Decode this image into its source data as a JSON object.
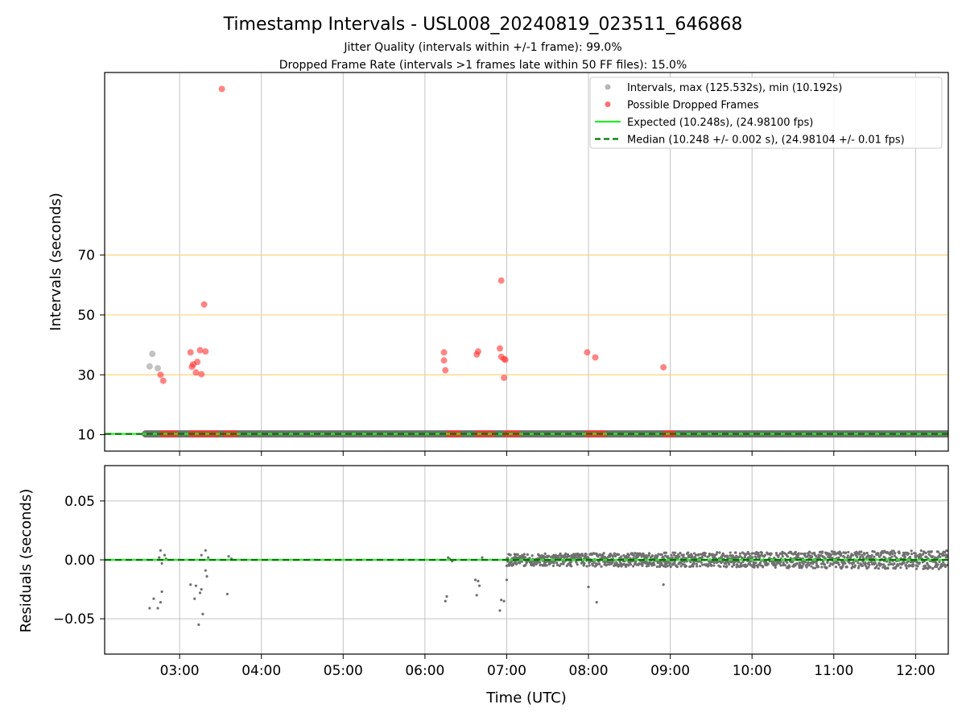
{
  "title": "Timestamp Intervals - USL008_20240819_023511_646868",
  "subtitle_line1": "Jitter Quality (intervals within +/-1 frame): 99.0%",
  "subtitle_line2": "Dropped Frame Rate (intervals >1 frames late within 50 FF files): 15.0%",
  "chart_data": [
    {
      "type": "scatter",
      "ylabel": "Intervals (seconds)",
      "xlabel": "",
      "xlim": [
        "02:05",
        "12:24"
      ],
      "ylim": [
        4.5,
        131.0
      ],
      "y_ticks": [
        10,
        30,
        50,
        70
      ],
      "y_tick_labels": [
        "10",
        "30",
        "50",
        "70"
      ],
      "x_ticks": [
        "03:00",
        "04:00",
        "05:00",
        "06:00",
        "07:00",
        "08:00",
        "09:00",
        "10:00",
        "11:00",
        "12:00"
      ],
      "reference_lines": [
        30,
        50,
        70
      ],
      "reference_line_color": "#ffd27a",
      "grid": "vertical",
      "legend_position": "top-right",
      "legend": [
        {
          "label": "Intervals, max (125.532s), min (10.192s)",
          "marker": "circle",
          "color": "#999999"
        },
        {
          "label": "Possible Dropped Frames",
          "marker": "circle",
          "color": "#ff3333"
        },
        {
          "label": "Expected (10.248s), (24.98100 fps)",
          "marker": "line",
          "color": "#22ee22"
        },
        {
          "label": "Median (10.248 +/- 0.002 s), (24.98104 +/- 0.01 fps)",
          "marker": "dashed",
          "color": "#007700"
        }
      ],
      "series": [
        {
          "name": "Intervals, max (125.532s), min (10.192s)",
          "color": "#999999",
          "points": [
            [
              "02:38",
              32.8
            ],
            [
              "02:40",
              37.0
            ],
            [
              "02:44",
              32.2
            ]
          ],
          "baseline": {
            "value": 10.248,
            "x_start": "02:35",
            "x_end": "12:24"
          }
        },
        {
          "name": "Possible Dropped Frames",
          "color": "#ff3333",
          "points": [
            [
              "03:31",
              125.5
            ],
            [
              "03:18",
              53.5
            ],
            [
              "06:56",
              61.5
            ],
            [
              "03:08",
              37.5
            ],
            [
              "03:15",
              38.2
            ],
            [
              "03:19",
              37.8
            ],
            [
              "03:13",
              34.3
            ],
            [
              "03:10",
              33.5
            ],
            [
              "03:09",
              32.7
            ],
            [
              "03:12",
              30.8
            ],
            [
              "03:16",
              30.2
            ],
            [
              "02:46",
              30.0
            ],
            [
              "02:48",
              28.0
            ],
            [
              "06:14",
              37.5
            ],
            [
              "06:14",
              34.8
            ],
            [
              "06:15",
              31.5
            ],
            [
              "06:38",
              36.8
            ],
            [
              "06:39",
              37.8
            ],
            [
              "06:55",
              38.8
            ],
            [
              "06:56",
              36.0
            ],
            [
              "06:58",
              35.3
            ],
            [
              "06:59",
              35.0
            ],
            [
              "06:58",
              29.0
            ],
            [
              "07:59",
              37.5
            ],
            [
              "08:05",
              35.8
            ],
            [
              "08:55",
              32.5
            ]
          ],
          "dropped_clusters_at_baseline": [
            [
              "02:47",
              "02:58"
            ],
            [
              "03:08",
              "03:28"
            ],
            [
              "03:33",
              "03:42"
            ],
            [
              "06:17",
              "06:26"
            ],
            [
              "06:38",
              "06:50"
            ],
            [
              "06:59",
              "07:09"
            ],
            [
              "07:59",
              "08:12"
            ],
            [
              "08:56",
              "09:03"
            ]
          ],
          "baseline_value": 10.248
        },
        {
          "name": "Expected (10.248s), (24.98100 fps)",
          "color": "#22ee22",
          "value": 10.248
        },
        {
          "name": "Median (10.248 +/- 0.002 s), (24.98104 +/- 0.01 fps)",
          "color": "#007700",
          "value": 10.248
        }
      ]
    },
    {
      "type": "scatter",
      "xlabel": "Time (UTC)",
      "ylabel": "Residuals (seconds)",
      "xlim": [
        "02:05",
        "12:24"
      ],
      "ylim": [
        -0.08,
        0.08
      ],
      "y_ticks": [
        -0.05,
        0.0,
        0.05
      ],
      "y_tick_labels": [
        "−0.05",
        "0.00",
        "0.05"
      ],
      "x_ticks": [
        "03:00",
        "04:00",
        "05:00",
        "06:00",
        "07:00",
        "08:00",
        "09:00",
        "10:00",
        "11:00",
        "12:00"
      ],
      "grid": "both",
      "series": [
        {
          "name": "",
          "color": "#707070",
          "points": [
            [
              "02:38",
              -0.041
            ],
            [
              "02:41",
              -0.033
            ],
            [
              "02:44",
              -0.041
            ],
            [
              "02:46",
              -0.036
            ],
            [
              "02:47",
              -0.027
            ],
            [
              "02:46",
              0.008
            ],
            [
              "02:49",
              0.004
            ],
            [
              "02:45",
              0.002
            ],
            [
              "02:47",
              -0.003
            ],
            [
              "02:50",
              0.001
            ],
            [
              "03:08",
              -0.021
            ],
            [
              "03:11",
              -0.033
            ],
            [
              "03:12",
              -0.022
            ],
            [
              "03:14",
              -0.055
            ],
            [
              "03:15",
              -0.028
            ],
            [
              "03:16",
              -0.025
            ],
            [
              "03:17",
              -0.046
            ],
            [
              "03:19",
              -0.009
            ],
            [
              "03:20",
              -0.014
            ],
            [
              "03:19",
              0.008
            ],
            [
              "03:16",
              0.004
            ],
            [
              "03:21",
              0.002
            ],
            [
              "03:35",
              -0.029
            ],
            [
              "03:36",
              0.003
            ],
            [
              "03:38",
              0.001
            ],
            [
              "06:15",
              -0.035
            ],
            [
              "06:16",
              -0.031
            ],
            [
              "06:17",
              0.002
            ],
            [
              "06:18",
              0.001
            ],
            [
              "06:20",
              -0.001
            ],
            [
              "06:37",
              -0.017
            ],
            [
              "06:39",
              -0.018
            ],
            [
              "06:40",
              -0.022
            ],
            [
              "06:38",
              -0.03
            ],
            [
              "06:42",
              0.002
            ],
            [
              "06:55",
              -0.043
            ],
            [
              "06:56",
              -0.034
            ],
            [
              "06:58",
              -0.035
            ],
            [
              "07:00",
              -0.017
            ],
            [
              "07:00",
              -0.005
            ],
            [
              "08:00",
              -0.023
            ],
            [
              "08:06",
              -0.036
            ],
            [
              "08:55",
              -0.021
            ]
          ],
          "dense_band": {
            "x_start": "07:00",
            "x_end": "12:24",
            "center": 0.0,
            "half_width": 0.005,
            "half_width_end": 0.008
          }
        },
        {
          "name": "",
          "color": "#22ee22",
          "value": 0.0
        },
        {
          "name": "",
          "color": "#007700",
          "value": 0.0
        }
      ]
    }
  ]
}
